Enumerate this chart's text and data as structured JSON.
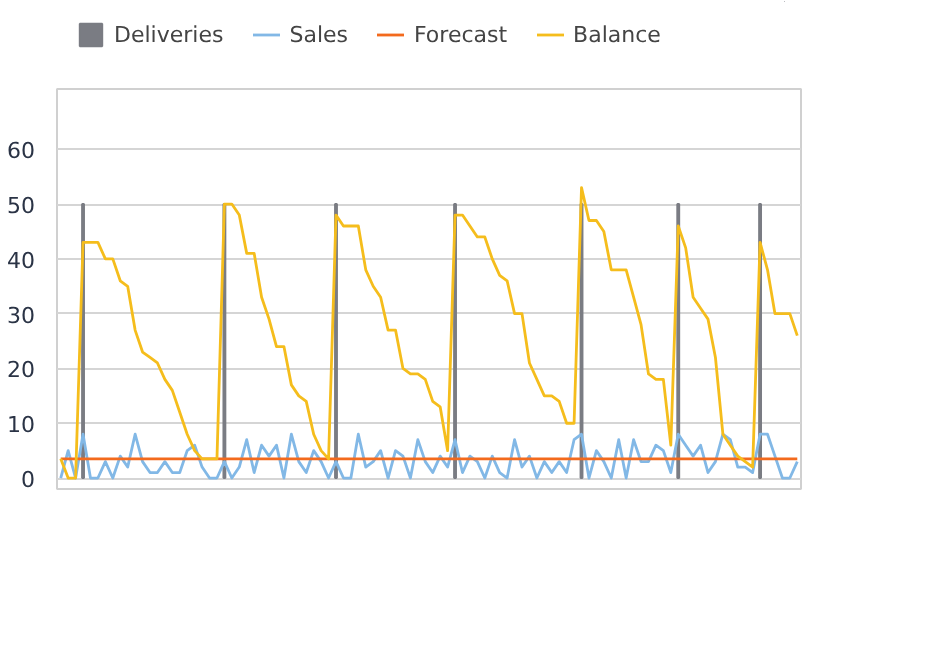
{
  "chart_data": {
    "type": "line",
    "categories": [
      null,
      null,
      null,
      null,
      null,
      null,
      null,
      null,
      null,
      null,
      null,
      null,
      null,
      null,
      null,
      null,
      null,
      null,
      null,
      null,
      null,
      null,
      null,
      null,
      null,
      null,
      null,
      null,
      null,
      null,
      null,
      null,
      null,
      null,
      null,
      null,
      null,
      null,
      null,
      null,
      null,
      null,
      null,
      null,
      null,
      null,
      null,
      null,
      null,
      null,
      null,
      null,
      null,
      null,
      null,
      null,
      null,
      null,
      null,
      null,
      null,
      null,
      null,
      null,
      null,
      null,
      null,
      null,
      null,
      null,
      null,
      null,
      null,
      null,
      null,
      null,
      null,
      null,
      null,
      null,
      null,
      null,
      null,
      null,
      null,
      null,
      null,
      null,
      null,
      null,
      null,
      null,
      null,
      null,
      null,
      null,
      null,
      null,
      null,
      null
    ],
    "series": [
      {
        "name": "Deliveries",
        "type": "bar",
        "color": "#7a7c83",
        "values": [
          null,
          null,
          null,
          50,
          null,
          null,
          null,
          null,
          null,
          null,
          null,
          null,
          null,
          null,
          null,
          null,
          null,
          null,
          null,
          null,
          null,
          null,
          50,
          null,
          null,
          null,
          null,
          null,
          null,
          null,
          null,
          null,
          null,
          null,
          null,
          null,
          null,
          50,
          null,
          null,
          null,
          null,
          null,
          null,
          null,
          null,
          null,
          null,
          null,
          null,
          null,
          null,
          null,
          50,
          null,
          null,
          null,
          null,
          null,
          null,
          null,
          null,
          null,
          null,
          null,
          null,
          null,
          null,
          null,
          null,
          50,
          null,
          null,
          null,
          null,
          null,
          null,
          null,
          null,
          null,
          null,
          null,
          null,
          50,
          null,
          null,
          null,
          null,
          null,
          null,
          null,
          null,
          null,
          null,
          50,
          null,
          null,
          null,
          null,
          null
        ]
      },
      {
        "name": "Sales",
        "color": "#82b8e6",
        "values": [
          0,
          5,
          0,
          8,
          0,
          0,
          3,
          0,
          4,
          2,
          8,
          3,
          1,
          1,
          3,
          1,
          1,
          5,
          6,
          2,
          0,
          0,
          3,
          0,
          2,
          7,
          1,
          6,
          4,
          6,
          0,
          8,
          3,
          1,
          5,
          3,
          0,
          3,
          0,
          0,
          8,
          2,
          3,
          5,
          0,
          5,
          4,
          0,
          7,
          3,
          1,
          4,
          2,
          7,
          1,
          4,
          3,
          0,
          4,
          1,
          0,
          7,
          2,
          4,
          0,
          3,
          1,
          3,
          1,
          7,
          8,
          0,
          5,
          3,
          0,
          7,
          0,
          7,
          3,
          3,
          6,
          5,
          1,
          8,
          6,
          4,
          6,
          1,
          3,
          8,
          7,
          2,
          2,
          1,
          8,
          8,
          4,
          0,
          0,
          3
        ]
      },
      {
        "name": "Forecast",
        "color": "#f36a1d",
        "values": [
          3.5,
          3.5,
          3.5,
          3.5,
          3.5,
          3.5,
          3.5,
          3.5,
          3.5,
          3.5,
          3.5,
          3.5,
          3.5,
          3.5,
          3.5,
          3.5,
          3.5,
          3.5,
          3.5,
          3.5,
          3.5,
          3.5,
          3.5,
          3.5,
          3.5,
          3.5,
          3.5,
          3.5,
          3.5,
          3.5,
          3.5,
          3.5,
          3.5,
          3.5,
          3.5,
          3.5,
          3.5,
          3.5,
          3.5,
          3.5,
          3.5,
          3.5,
          3.5,
          3.5,
          3.5,
          3.5,
          3.5,
          3.5,
          3.5,
          3.5,
          3.5,
          3.5,
          3.5,
          3.5,
          3.5,
          3.5,
          3.5,
          3.5,
          3.5,
          3.5,
          3.5,
          3.5,
          3.5,
          3.5,
          3.5,
          3.5,
          3.5,
          3.5,
          3.5,
          3.5,
          3.5,
          3.5,
          3.5,
          3.5,
          3.5,
          3.5,
          3.5,
          3.5,
          3.5,
          3.5,
          3.5,
          3.5,
          3.5,
          3.5,
          3.5,
          3.5,
          3.5,
          3.5,
          3.5,
          3.5,
          3.5,
          3.5,
          3.5,
          3.5,
          3.5,
          3.5,
          3.5,
          3.5,
          3.5,
          3.5
        ]
      },
      {
        "name": "Balance",
        "color": "#f5bd1c",
        "values": [
          3.5,
          0,
          0,
          43,
          43,
          43,
          40,
          40,
          36,
          35,
          27,
          23,
          22,
          21,
          18,
          16,
          12,
          8,
          5,
          3.5,
          3.5,
          3.5,
          50,
          50,
          48,
          41,
          41,
          33,
          29,
          24,
          24,
          17,
          15,
          14,
          8,
          5,
          3.5,
          48,
          46,
          46,
          46,
          38,
          35,
          33,
          27,
          27,
          20,
          19,
          19,
          18,
          14,
          13,
          5,
          48,
          48,
          46,
          44,
          44,
          40,
          37,
          36,
          30,
          30,
          21,
          18,
          15,
          15,
          14,
          10,
          10,
          53,
          47,
          47,
          45,
          38,
          38,
          38,
          33,
          28,
          19,
          18,
          18,
          6,
          46,
          42,
          33,
          31,
          29,
          22,
          8,
          6,
          4,
          3,
          2,
          43,
          38,
          30,
          30,
          30,
          26
        ]
      }
    ],
    "ylim": [
      -2,
      71
    ],
    "yticks": [
      0,
      10,
      20,
      30,
      40,
      50,
      60
    ],
    "grid": "y",
    "legend": "top left",
    "tick_labels": "y"
  }
}
